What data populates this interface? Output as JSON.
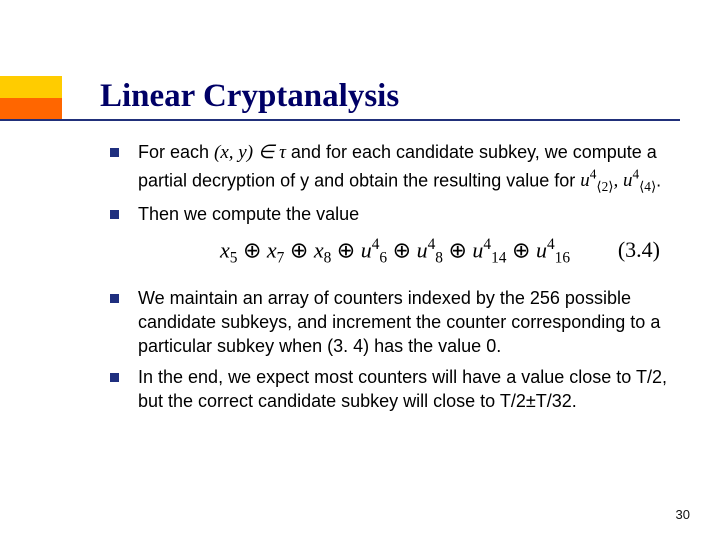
{
  "accent": {
    "top_color": "#ffcc00",
    "bot_color": "#ff6600",
    "underline_color": "#21307a"
  },
  "title": "Linear Cryptanalysis",
  "bullets": {
    "b1_pre": "For each ",
    "b1_math": "(x, y) ∈ τ",
    "b1_post": " and for each candidate subkey, we compute a partial decryption of y and obtain the resulting value for ",
    "b1_math2a": "u",
    "b1_math2a_sub": "⟨2⟩",
    "b1_math2a_sup": "4",
    "b1_comma": ", ",
    "b1_math2b": "u",
    "b1_math2b_sub": "⟨4⟩",
    "b1_math2b_sup": "4",
    "b1_period": ".",
    "b2": "Then we compute the value",
    "b3": "We maintain an array of counters indexed by the 256 possible candidate subkeys, and increment the counter corresponding to a particular subkey when (3. 4) has the value 0.",
    "b4": "In the end, we expect most counters will have a value close to T/2, but the correct candidate subkey will close to T/2±T/32."
  },
  "formula": {
    "terms": [
      {
        "v": "x",
        "s": "5"
      },
      {
        "op": "⊕"
      },
      {
        "v": "x",
        "s": "7"
      },
      {
        "op": "⊕"
      },
      {
        "v": "x",
        "s": "8"
      },
      {
        "op": "⊕"
      },
      {
        "v": "u",
        "s": "6",
        "p": "4"
      },
      {
        "op": "⊕"
      },
      {
        "v": "u",
        "s": "8",
        "p": "4"
      },
      {
        "op": "⊕"
      },
      {
        "v": "u",
        "s": "14",
        "p": "4"
      },
      {
        "op": "⊕"
      },
      {
        "v": "u",
        "s": "16",
        "p": "4"
      }
    ],
    "eqnum": "(3.4)"
  },
  "page_number": "30"
}
